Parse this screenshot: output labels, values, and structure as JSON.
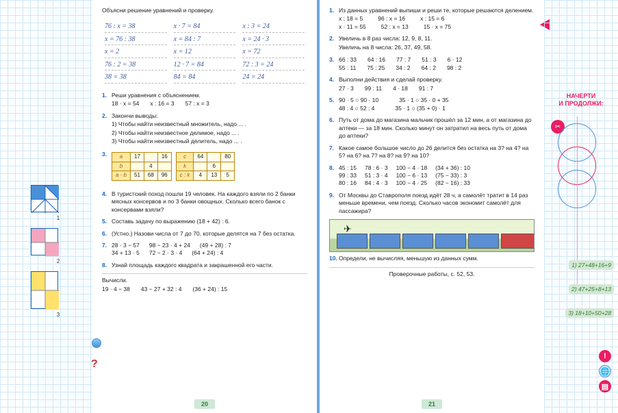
{
  "left_page": {
    "instruction": "Объясни решение уравнений и проверку.",
    "handwriting": [
      [
        "76 : x = 38",
        "x · 7 = 84",
        "x : 3 = 24"
      ],
      [
        "x = 76 : 38",
        "x = 84 : 7",
        "x = 24 · 3"
      ],
      [
        "x = 2",
        "x = 12",
        "x = 72"
      ],
      [
        "76 : 2 = 38",
        "12 · 7 = 84",
        "72 : 3 = 24"
      ],
      [
        "38 = 38",
        "84 = 84",
        "24 = 24"
      ]
    ],
    "ex1": {
      "num": "1.",
      "text": "Реши уравнения с объяснением.",
      "items": [
        "18 · x = 54",
        "x : 16 = 3",
        "57 : x = 3"
      ]
    },
    "ex2": {
      "num": "2.",
      "text": "Закончи выводы:",
      "items": [
        "1) Чтобы найти неизвестный множитель, надо ... .",
        "2) Чтобы найти неизвестное делимое, надо ... .",
        "3) Чтобы найти неизвестный делитель, надо ... ."
      ]
    },
    "ex3": {
      "num": "3.",
      "t1": {
        "rows": [
          [
            "a",
            "17",
            "",
            "16"
          ],
          [
            "b",
            "",
            "4",
            ""
          ],
          [
            "a · b",
            "51",
            "68",
            "96"
          ]
        ]
      },
      "t2": {
        "rows": [
          [
            "c",
            "64",
            "",
            "80"
          ],
          [
            "k",
            "",
            "6",
            ""
          ],
          [
            "c : k",
            "4",
            "13",
            "5"
          ]
        ]
      }
    },
    "ex4": {
      "num": "4.",
      "text": "В туристский поход пошли 19 человек. На каждого взяли по 2 банки мясных консервов и по 3 банки овощных. Сколько всего банок с консервами взяли?"
    },
    "ex5": {
      "num": "5.",
      "text": "Составь задачу по выражению (18 + 42) : 6."
    },
    "ex6": {
      "num": "6.",
      "text": "(Устно.) Назови числа от 7 до 70, которые делятся на 7 без остатка."
    },
    "ex7": {
      "num": "7.",
      "rows": [
        [
          "28 · 3 − 57",
          "98 − 23 · 4 + 24",
          "(49 + 28) : 7"
        ],
        [
          "34 + 13 · 5",
          "72 − 2 · 3 · 4",
          "(64 + 24) : 4"
        ]
      ]
    },
    "ex8": {
      "num": "8.",
      "text": "Узнай площадь каждого квадрата и закрашенной его части."
    },
    "calc": {
      "label": "Вычисли.",
      "items": [
        "19 · 4 − 38",
        "43 − 27 + 32 : 4",
        "(36 + 24) : 15"
      ]
    },
    "page_num": "20"
  },
  "right_page": {
    "ex1": {
      "num": "1.",
      "text": "Из данных уравнений выпиши и реши те, которые решаются делением.",
      "rows": [
        [
          "x : 18 = 5",
          "96 : x = 16",
          "x : 15 = 6"
        ],
        [
          "x · 11 = 55",
          "52 : x = 13",
          "15 · x = 75"
        ]
      ]
    },
    "ex2": {
      "num": "2.",
      "l1": "Увеличь в 8 раз числа: 12, 9, 8, 11.",
      "l2": "Увеличь на 8 числа: 26, 37, 49, 58."
    },
    "ex3": {
      "num": "3.",
      "rows": [
        [
          "66 : 33",
          "64 : 16",
          "77 : 7",
          "51 : 3",
          "6 · 12"
        ],
        [
          "55 : 11",
          "75 : 25",
          "34 : 2",
          "64 : 2",
          "98 : 2"
        ]
      ]
    },
    "ex4": {
      "num": "4.",
      "text": "Выполни действия и сделай проверку.",
      "items": [
        "27 · 3",
        "99 : 11",
        "4 · 18",
        "91 : 7"
      ]
    },
    "ex5": {
      "num": "5.",
      "rows": [
        [
          "90 · 5 ○ 90 · 10",
          "35 · 1 ○ 35 · 0 + 35"
        ],
        [
          "48 : 4 ○ 52 : 4",
          "35 · 1 ○ (35 + 0) · 1"
        ]
      ]
    },
    "ex6": {
      "num": "6.",
      "text": "Путь от дома до магазина мальчик прошёл за 12 мин, а от магазина до аптеки — за 18 мин. Сколько минут он затратил на весь путь от дома до аптеки?"
    },
    "ex7": {
      "num": "7.",
      "text": "Какое самое большое число до 26 делится без остатка на 3? на 4? на 5? на 6? на 7? на 8? на 9? на 10?"
    },
    "ex8": {
      "num": "8.",
      "rows": [
        [
          "45 : 15",
          "78 : 6 · 3",
          "100 − 4 · 18",
          "(34 + 36) : 10"
        ],
        [
          "99 : 33",
          "51 : 3 · 4",
          "100 − 6 · 13",
          "(75 − 33) : 3"
        ],
        [
          "80 : 16",
          "84 : 4 · 3",
          "100 − 4 · 25",
          "(82 − 16) : 33"
        ]
      ]
    },
    "ex9": {
      "num": "9.",
      "text": "От Москвы до Ставрополя поезд идёт 28 ч, а самолёт тратит в 14 раз меньше времени, чем поезд. Сколько часов экономит самолёт для пассажира?"
    },
    "ex10": {
      "num": "10.",
      "text": "Определи, не вычисляя, меньшую из данных сумм."
    },
    "footer": "Проверочные работы, с. 52, 53.",
    "page_num": "21"
  },
  "right_margin": {
    "title1": "НАЧЕРТИ",
    "title2": "И ПРОДОЛЖИ:",
    "eqs": [
      "1) 27+48+16+9",
      "2) 47+25+8+13",
      "3) 18+10+50+28"
    ],
    "circle_colors": [
      "#4a90d9",
      "#e91e63",
      "#4a90d9"
    ]
  }
}
